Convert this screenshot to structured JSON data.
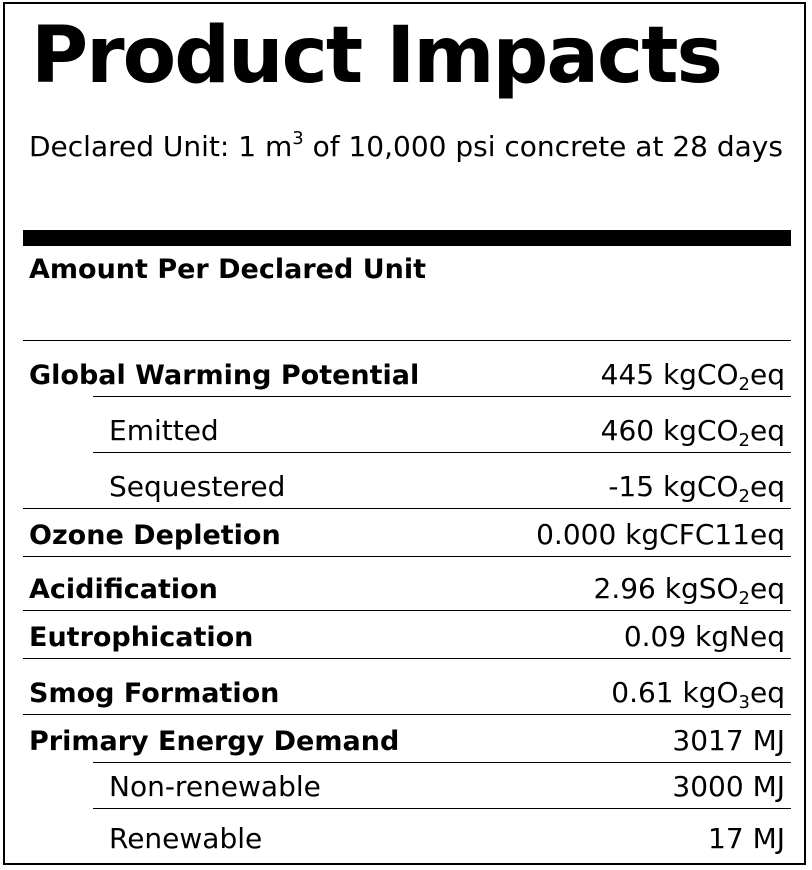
{
  "title": "Product Impacts",
  "declared_unit": {
    "prefix": "Declared Unit: 1 m",
    "superscript": "3",
    "suffix": " of 10,000 psi concrete at 28 days"
  },
  "amount_header": "Amount Per Declared Unit",
  "rows": [
    {
      "label": "Global Warming Potential",
      "bold": true,
      "indent": false,
      "value": {
        "pre": "445 kgCO",
        "sub": "2",
        "post": "eq"
      }
    },
    {
      "label": "Emitted",
      "bold": false,
      "indent": true,
      "value": {
        "pre": "460 kgCO",
        "sub": "2",
        "post": "eq"
      }
    },
    {
      "label": "Sequestered",
      "bold": false,
      "indent": true,
      "value": {
        "pre": "-15 kgCO",
        "sub": "2",
        "post": "eq"
      }
    },
    {
      "label": "Ozone Depletion",
      "bold": true,
      "indent": false,
      "value": {
        "pre": "0.000 kgCFC11eq",
        "sub": "",
        "post": ""
      }
    },
    {
      "label": "Acidification",
      "bold": true,
      "indent": false,
      "value": {
        "pre": "2.96 kgSO",
        "sub": "2",
        "post": "eq"
      }
    },
    {
      "label": "Eutrophication",
      "bold": true,
      "indent": false,
      "value": {
        "pre": "0.09 kgNeq",
        "sub": "",
        "post": ""
      }
    },
    {
      "label": "Smog Formation",
      "bold": true,
      "indent": false,
      "value": {
        "pre": "0.61 kgO",
        "sub": "3",
        "post": "eq"
      }
    },
    {
      "label": "Primary Energy Demand",
      "bold": true,
      "indent": false,
      "value": {
        "pre": "3017 MJ",
        "sub": "",
        "post": ""
      }
    },
    {
      "label": "Non-renewable",
      "bold": false,
      "indent": true,
      "value": {
        "pre": "3000 MJ",
        "sub": "",
        "post": ""
      }
    },
    {
      "label": "Renewable",
      "bold": false,
      "indent": true,
      "value": {
        "pre": "17 MJ",
        "sub": "",
        "post": ""
      }
    }
  ]
}
